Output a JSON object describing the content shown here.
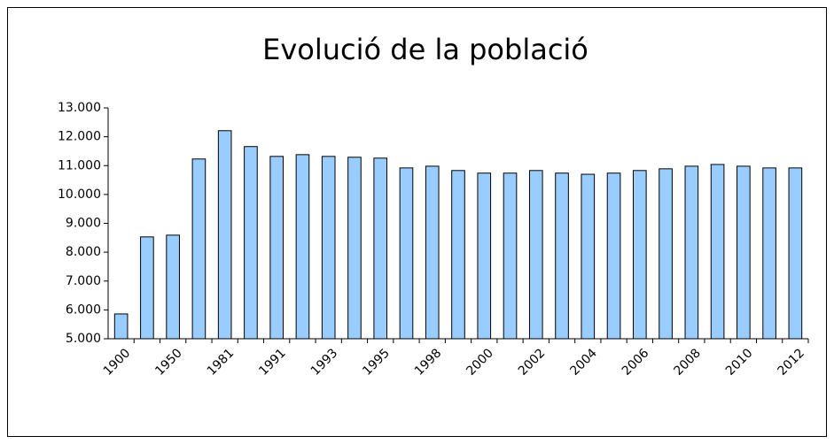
{
  "chart_data": {
    "type": "bar",
    "title": "Evolució de la població",
    "categories": [
      "1900",
      null,
      "1950",
      null,
      "1981",
      null,
      "1991",
      null,
      "1993",
      null,
      "1995",
      null,
      "1998",
      null,
      "2000",
      null,
      "2002",
      null,
      "2004",
      null,
      "2006",
      null,
      "2008",
      null,
      "2010",
      null,
      "2012"
    ],
    "values": [
      5860,
      8530,
      8590,
      11230,
      12210,
      11660,
      11320,
      11380,
      11320,
      11290,
      11260,
      10920,
      10980,
      10830,
      10740,
      10740,
      10830,
      10740,
      10700,
      10740,
      10830,
      10890,
      10980,
      11040,
      10980,
      10920,
      10920
    ],
    "color": "#99ccff",
    "ylim": [
      5000,
      13000
    ],
    "yticks": [
      {
        "value": 5000,
        "label": "5.000"
      },
      {
        "value": 6000,
        "label": "6.000"
      },
      {
        "value": 7000,
        "label": "7.000"
      },
      {
        "value": 8000,
        "label": "8.000"
      },
      {
        "value": 9000,
        "label": "9.000"
      },
      {
        "value": 10000,
        "label": "10.000"
      },
      {
        "value": 11000,
        "label": "11.000"
      },
      {
        "value": 12000,
        "label": "12.000"
      },
      {
        "value": 13000,
        "label": "13.000"
      }
    ],
    "grid": false
  }
}
